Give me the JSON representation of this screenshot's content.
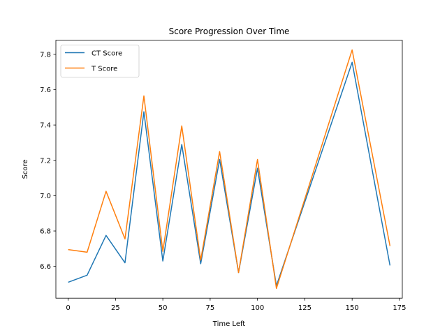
{
  "chart_data": {
    "type": "line",
    "title": "Score Progression Over Time",
    "xlabel": "Time Left",
    "ylabel": "Score",
    "xlim": [
      -6.5,
      176.5
    ],
    "ylim": [
      6.42,
      7.88
    ],
    "xticks": [
      0,
      25,
      50,
      75,
      100,
      125,
      150,
      175
    ],
    "yticks": [
      6.6,
      6.8,
      7.0,
      7.2,
      7.4,
      7.6,
      7.8
    ],
    "xtick_labels": [
      "0",
      "25",
      "50",
      "75",
      "100",
      "125",
      "150",
      "175"
    ],
    "ytick_labels": [
      "6.6",
      "6.8",
      "7.0",
      "7.2",
      "7.4",
      "7.6",
      "7.8"
    ],
    "grid": false,
    "legend_position": "upper-left",
    "x": [
      0,
      10,
      20,
      30,
      40,
      50,
      60,
      70,
      80,
      90,
      100,
      110,
      150,
      170
    ],
    "series": [
      {
        "name": "CT Score",
        "color": "#1f77b4",
        "values": [
          6.51,
          6.55,
          6.775,
          6.62,
          7.475,
          6.63,
          7.29,
          6.615,
          7.205,
          6.565,
          7.155,
          6.49,
          7.755,
          6.605
        ]
      },
      {
        "name": "T Score",
        "color": "#ff7f0e",
        "values": [
          6.695,
          6.68,
          7.025,
          6.755,
          7.565,
          6.685,
          7.395,
          6.635,
          7.25,
          6.565,
          7.205,
          6.475,
          7.825,
          6.715
        ]
      }
    ]
  }
}
